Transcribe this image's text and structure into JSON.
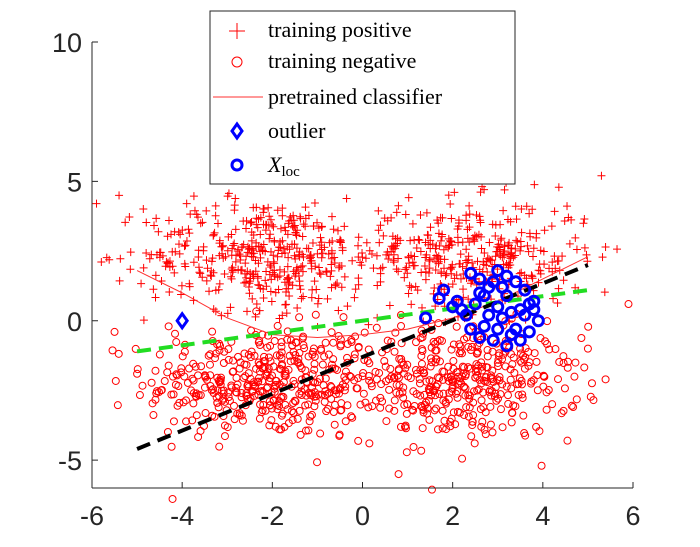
{
  "chart_data": {
    "type": "scatter",
    "xlim": [
      -6,
      6
    ],
    "ylim": [
      -6,
      10
    ],
    "xticks": [
      -6,
      -4,
      -2,
      0,
      2,
      4,
      6
    ],
    "yticks": [
      -5,
      0,
      5,
      10
    ],
    "xtick_labels": [
      "-6",
      "-4",
      "-2",
      "0",
      "2",
      "4",
      "6"
    ],
    "ytick_labels": [
      "-5",
      "0",
      "5",
      "10"
    ],
    "grid": false,
    "legend_position": "top-center",
    "legend": {
      "training_positive": "training positive",
      "training_negative": "training negative",
      "pretrained_classifier": "pretrained classifier",
      "outlier": "outlier",
      "xloc_base": "X",
      "xloc_sub": "loc"
    },
    "colors": {
      "positive": "#ff0000",
      "negative": "#ff0000",
      "classifier": "#ff3030",
      "outlier": "#0000ff",
      "xloc": "#0000ff",
      "green_line": "#22dd22",
      "black_line": "#000000"
    },
    "series": [
      {
        "name": "training positive",
        "marker": "plus",
        "clusters": [
          {
            "center": [
              -2.2,
              2.4
            ],
            "spread": [
              1.3,
              1.0
            ],
            "count": 420
          },
          {
            "center": [
              2.4,
              2.3
            ],
            "spread": [
              1.3,
              1.0
            ],
            "count": 380
          }
        ],
        "extra_points": [
          [
            -5.9,
            4.2
          ],
          [
            -5.4,
            4.5
          ],
          [
            5.3,
            5.2
          ],
          [
            -3.9,
            4.2
          ],
          [
            4.9,
            3.5
          ]
        ]
      },
      {
        "name": "training negative",
        "marker": "circle",
        "clusters": [
          {
            "center": [
              -2.2,
              -2.2
            ],
            "spread": [
              1.3,
              1.0
            ],
            "count": 420
          },
          {
            "center": [
              2.2,
              -2.2
            ],
            "spread": [
              1.3,
              1.0
            ],
            "count": 420
          }
        ],
        "extra_points": [
          [
            -5.5,
            -0.4
          ],
          [
            5.9,
            0.6
          ],
          [
            -4.3,
            -0.2
          ],
          [
            0.8,
            -5.5
          ],
          [
            5.0,
            -1.0
          ]
        ]
      },
      {
        "name": "pretrained classifier",
        "type": "line",
        "x": [
          -5.0,
          -4.0,
          -3.0,
          -2.0,
          -1.0,
          0.0,
          1.0,
          2.0,
          3.0,
          4.0,
          5.0
        ],
        "y": [
          1.8,
          1.0,
          0.1,
          -0.5,
          -0.6,
          -0.5,
          -0.3,
          0.1,
          0.7,
          1.5,
          2.3
        ]
      },
      {
        "name": "outlier",
        "marker": "diamond",
        "points": [
          [
            -4.0,
            0.0
          ]
        ]
      },
      {
        "name": "X_loc",
        "marker": "circle",
        "points": [
          [
            2.4,
            1.7
          ],
          [
            2.6,
            1.5
          ],
          [
            2.8,
            1.2
          ],
          [
            3.0,
            1.8
          ],
          [
            3.2,
            1.6
          ],
          [
            3.4,
            1.4
          ],
          [
            3.6,
            1.1
          ],
          [
            3.8,
            0.7
          ],
          [
            3.9,
            0.0
          ],
          [
            3.7,
            -0.4
          ],
          [
            3.5,
            -0.7
          ],
          [
            3.2,
            -0.9
          ],
          [
            2.9,
            -0.7
          ],
          [
            2.6,
            -0.6
          ],
          [
            2.4,
            -0.3
          ],
          [
            2.3,
            0.2
          ],
          [
            2.5,
            0.6
          ],
          [
            2.7,
            0.9
          ],
          [
            3.0,
            0.5
          ],
          [
            3.1,
            0.1
          ],
          [
            3.3,
            0.3
          ],
          [
            3.5,
            0.4
          ],
          [
            3.0,
            -0.3
          ],
          [
            2.8,
            0.2
          ],
          [
            3.6,
            0.2
          ],
          [
            1.8,
            1.1
          ],
          [
            1.7,
            0.8
          ],
          [
            1.4,
            0.1
          ],
          [
            2.0,
            0.5
          ],
          [
            2.1,
            0.7
          ],
          [
            3.2,
            0.9
          ],
          [
            2.9,
            1.4
          ],
          [
            3.4,
            -0.3
          ],
          [
            3.7,
            0.6
          ],
          [
            2.6,
            1.0
          ],
          [
            3.1,
            1.2
          ],
          [
            2.7,
            -0.2
          ],
          [
            3.3,
            -0.5
          ],
          [
            3.8,
            0.4
          ],
          [
            2.2,
            0.4
          ]
        ]
      },
      {
        "name": "green dashed line",
        "type": "line",
        "style": "dashed",
        "x": [
          -5.0,
          5.0
        ],
        "y": [
          -1.1,
          1.1
        ]
      },
      {
        "name": "black dashed line",
        "type": "line",
        "style": "dashed",
        "x": [
          -5.0,
          5.0
        ],
        "y": [
          -4.6,
          2.0
        ]
      }
    ]
  }
}
